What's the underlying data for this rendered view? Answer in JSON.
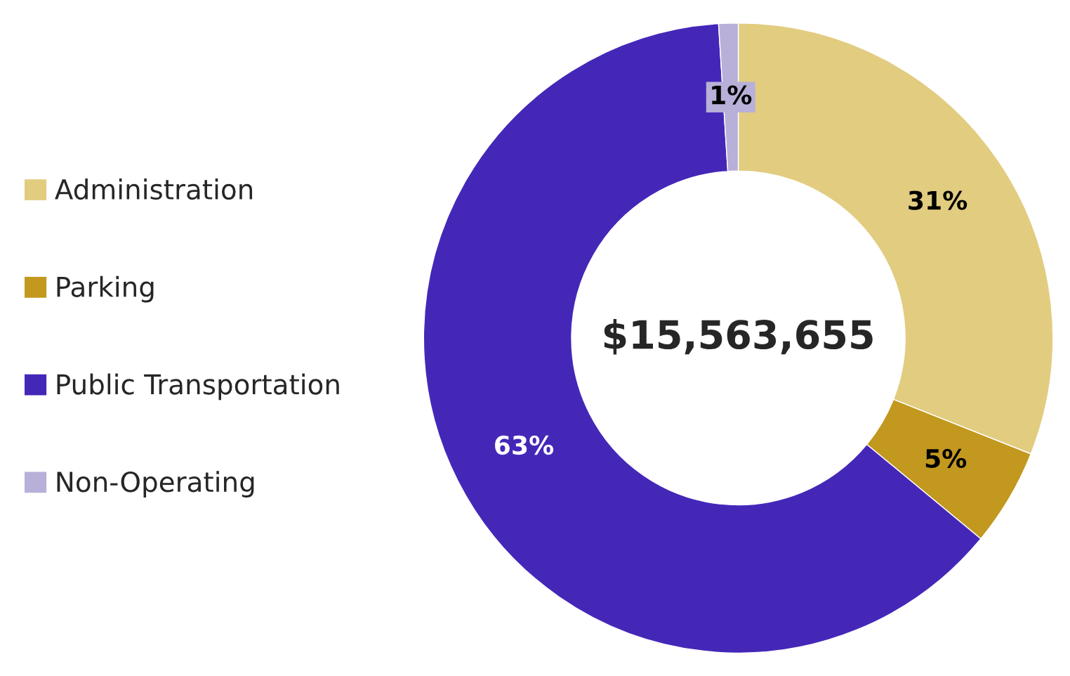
{
  "chart_data": {
    "type": "donut",
    "categories": [
      "Administration",
      "Parking",
      "Public Transportation",
      "Non-Operating"
    ],
    "values": [
      31,
      5,
      63,
      1
    ],
    "colors": [
      "#e2cc80",
      "#c2981e",
      "#4527b8",
      "#b8b0d8"
    ],
    "value_labels": [
      "31%",
      "5%",
      "63%",
      "1%"
    ],
    "legend": "left",
    "annotations": [
      "$15,563,655"
    ]
  }
}
